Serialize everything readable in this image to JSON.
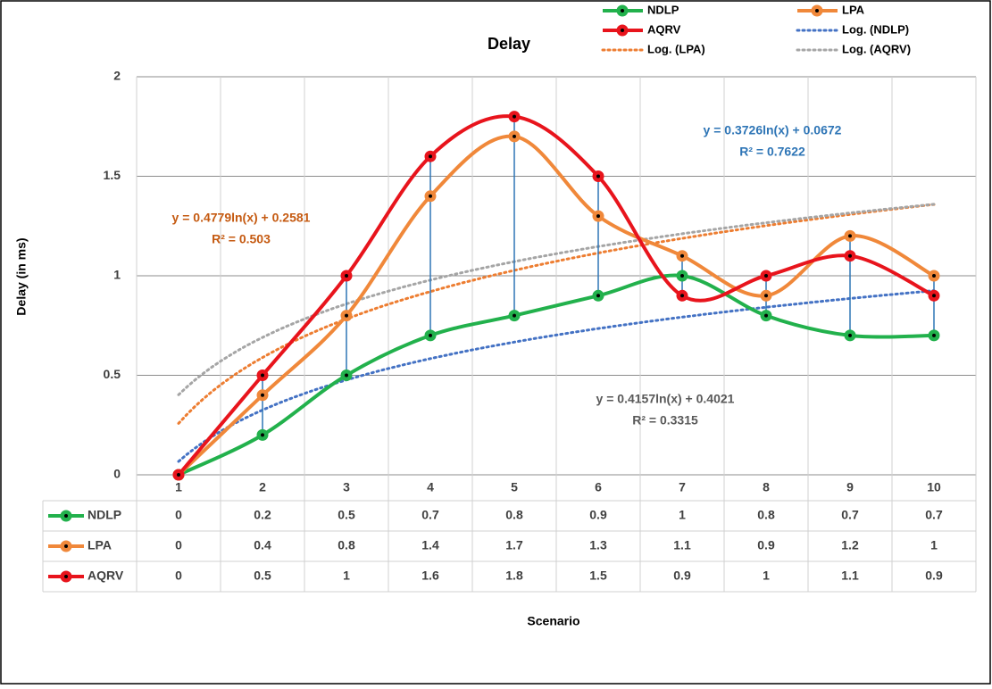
{
  "chart_data": {
    "type": "line",
    "title": "Delay",
    "x_label": "Scenario",
    "y_label": "Delay (in ms)",
    "categories": [
      "1",
      "2",
      "3",
      "4",
      "5",
      "6",
      "7",
      "8",
      "9",
      "10"
    ],
    "series": [
      {
        "name": "NDLP",
        "color": "#22b14c",
        "values": [
          0,
          0.2,
          0.5,
          0.7,
          0.8,
          0.9,
          1,
          0.8,
          0.7,
          0.7
        ]
      },
      {
        "name": "LPA",
        "color": "#f0883a",
        "values": [
          0,
          0.4,
          0.8,
          1.4,
          1.7,
          1.3,
          1.1,
          0.9,
          1.2,
          1
        ]
      },
      {
        "name": "AQRV",
        "color": "#e8141c",
        "values": [
          0,
          0.5,
          1,
          1.6,
          1.8,
          1.5,
          0.9,
          1,
          1.1,
          0.9
        ]
      }
    ],
    "trendlines": [
      {
        "name": "Log. (NDLP)",
        "color": "#4472c4",
        "a": 0.3726,
        "b": 0.0672,
        "equation": "y = 0.3726ln(x) + 0.0672",
        "r_squared": "R² = 0.7622"
      },
      {
        "name": "Log. (LPA)",
        "color": "#ed7d31",
        "a": 0.4779,
        "b": 0.2581,
        "equation": "y = 0.4779ln(x) + 0.2581",
        "r_squared": "R² = 0.503"
      },
      {
        "name": "Log. (AQRV)",
        "color": "#a5a5a5",
        "a": 0.4157,
        "b": 0.4021,
        "equation": "y = 0.4157ln(x) + 0.4021",
        "r_squared": "R² = 0.3315"
      }
    ],
    "ylim": [
      0,
      2
    ],
    "yticks": [
      0,
      0.5,
      1,
      1.5,
      2
    ],
    "grid": true,
    "high_low_lines": "#2e75b6"
  }
}
